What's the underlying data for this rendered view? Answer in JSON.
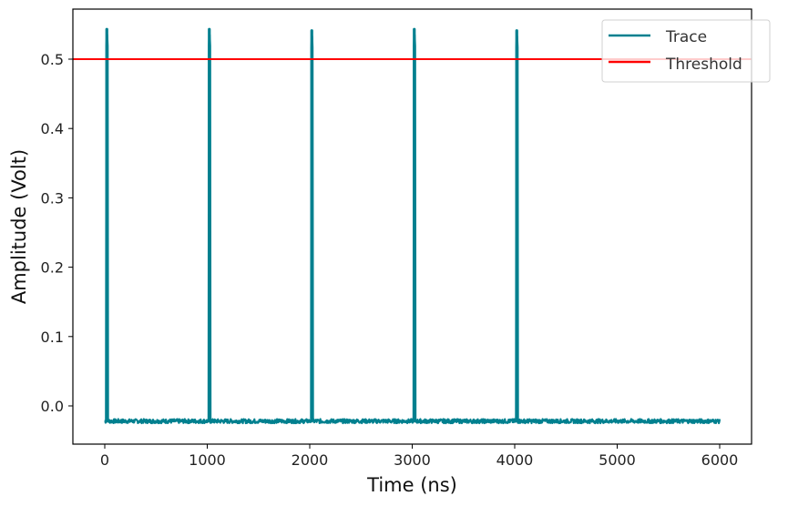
{
  "chart_data": {
    "type": "line",
    "title": "",
    "xlabel": "Time (ns)",
    "ylabel": "Amplitude (Volt)",
    "xlim": [
      -300,
      6300
    ],
    "ylim": [
      -0.055,
      0.572
    ],
    "xticks": [
      0,
      1000,
      2000,
      3000,
      4000,
      5000,
      6000
    ],
    "xtick_labels": [
      "0",
      "1000",
      "2000",
      "3000",
      "4000",
      "5000",
      "6000"
    ],
    "yticks": [
      0.0,
      0.1,
      0.2,
      0.3,
      0.4,
      0.5
    ],
    "ytick_labels": [
      "0.0",
      "0.1",
      "0.2",
      "0.3",
      "0.4",
      "0.5"
    ],
    "grid": false,
    "legend_position": "upper right",
    "series": [
      {
        "name": "Trace",
        "color": "#00808f",
        "baseline": -0.022,
        "x_range": [
          0,
          6000
        ],
        "pulses": [
          {
            "time": 20,
            "peak": 0.543
          },
          {
            "time": 1020,
            "peak": 0.543
          },
          {
            "time": 2020,
            "peak": 0.541
          },
          {
            "time": 3020,
            "peak": 0.543
          },
          {
            "time": 4020,
            "peak": 0.541
          }
        ]
      },
      {
        "name": "Threshold",
        "color": "#ff0000",
        "type": "hline",
        "value": 0.5
      }
    ]
  },
  "legend": {
    "items": [
      {
        "label": "Trace",
        "color": "#00808f"
      },
      {
        "label": "Threshold",
        "color": "#ff0000"
      }
    ]
  },
  "labels": {
    "xlabel": "Time (ns)",
    "ylabel": "Amplitude (Volt)"
  }
}
